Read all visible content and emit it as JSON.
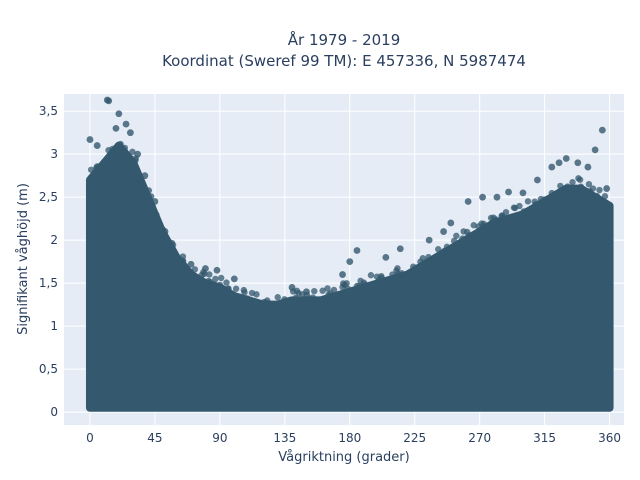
{
  "chart_data": {
    "type": "scatter",
    "title_line1": "År 1979 - 2019",
    "title_line2": "Koordinat (Sweref 99 TM): E 457336, N 5987474",
    "xlabel": "Vågriktning (grader)",
    "ylabel": "Signifikant våghöjd (m)",
    "xlim": [
      -18,
      370
    ],
    "ylim": [
      -0.15,
      3.7
    ],
    "x_ticks": [
      0,
      45,
      90,
      135,
      180,
      225,
      270,
      315,
      360
    ],
    "x_tick_labels": [
      "0",
      "45",
      "90",
      "135",
      "180",
      "225",
      "270",
      "315",
      "360"
    ],
    "y_ticks": [
      0,
      0.5,
      1,
      1.5,
      2,
      2.5,
      3,
      3.5
    ],
    "y_tick_labels": [
      "0",
      "0,5",
      "1",
      "1,5",
      "2",
      "2,5",
      "3",
      "3,5"
    ],
    "grid": true,
    "marker_color": "#34586e",
    "plot_bg": "#e5ecf6",
    "envelope": {
      "x": [
        0,
        10,
        20,
        30,
        40,
        50,
        60,
        70,
        80,
        90,
        100,
        110,
        120,
        130,
        140,
        150,
        160,
        170,
        180,
        190,
        200,
        210,
        220,
        230,
        240,
        250,
        260,
        270,
        280,
        290,
        300,
        310,
        320,
        330,
        340,
        350,
        360
      ],
      "y_max": [
        2.7,
        2.9,
        3.1,
        2.9,
        2.5,
        2.1,
        1.8,
        1.6,
        1.5,
        1.45,
        1.35,
        1.3,
        1.25,
        1.25,
        1.3,
        1.3,
        1.3,
        1.35,
        1.4,
        1.45,
        1.5,
        1.55,
        1.6,
        1.7,
        1.8,
        1.9,
        2.0,
        2.1,
        2.2,
        2.25,
        2.3,
        2.4,
        2.5,
        2.6,
        2.6,
        2.5,
        2.4
      ],
      "y_min": [
        0.05,
        0.05,
        0.05,
        0.05,
        0.05,
        0.05,
        0.05,
        0.05,
        0.05,
        0.05,
        0.05,
        0.05,
        0.05,
        0.05,
        0.05,
        0.05,
        0.05,
        0.05,
        0.05,
        0.05,
        0.05,
        0.05,
        0.05,
        0.05,
        0.05,
        0.05,
        0.05,
        0.05,
        0.05,
        0.05,
        0.05,
        0.05,
        0.05,
        0.05,
        0.05,
        0.05,
        0.05
      ]
    },
    "outliers": [
      {
        "x": 12,
        "y": 3.63
      },
      {
        "x": 13,
        "y": 3.62
      },
      {
        "x": 20,
        "y": 3.47
      },
      {
        "x": 25,
        "y": 3.35
      },
      {
        "x": 18,
        "y": 3.3
      },
      {
        "x": 28,
        "y": 3.25
      },
      {
        "x": 0,
        "y": 3.17
      },
      {
        "x": 5,
        "y": 3.1
      },
      {
        "x": 33,
        "y": 3.0
      },
      {
        "x": 38,
        "y": 2.75
      },
      {
        "x": 45,
        "y": 2.45
      },
      {
        "x": 52,
        "y": 2.1
      },
      {
        "x": 70,
        "y": 1.72
      },
      {
        "x": 80,
        "y": 1.67
      },
      {
        "x": 88,
        "y": 1.65
      },
      {
        "x": 100,
        "y": 1.55
      },
      {
        "x": 140,
        "y": 1.45
      },
      {
        "x": 150,
        "y": 1.4
      },
      {
        "x": 175,
        "y": 1.6
      },
      {
        "x": 180,
        "y": 1.75
      },
      {
        "x": 185,
        "y": 1.88
      },
      {
        "x": 205,
        "y": 1.8
      },
      {
        "x": 215,
        "y": 1.9
      },
      {
        "x": 235,
        "y": 2.0
      },
      {
        "x": 245,
        "y": 2.1
      },
      {
        "x": 250,
        "y": 2.2
      },
      {
        "x": 262,
        "y": 2.45
      },
      {
        "x": 272,
        "y": 2.5
      },
      {
        "x": 282,
        "y": 2.5
      },
      {
        "x": 290,
        "y": 2.56
      },
      {
        "x": 300,
        "y": 2.55
      },
      {
        "x": 310,
        "y": 2.7
      },
      {
        "x": 320,
        "y": 2.85
      },
      {
        "x": 325,
        "y": 2.9
      },
      {
        "x": 330,
        "y": 2.95
      },
      {
        "x": 338,
        "y": 2.9
      },
      {
        "x": 345,
        "y": 2.85
      },
      {
        "x": 350,
        "y": 3.05
      },
      {
        "x": 355,
        "y": 3.28
      },
      {
        "x": 358,
        "y": 2.6
      }
    ]
  }
}
